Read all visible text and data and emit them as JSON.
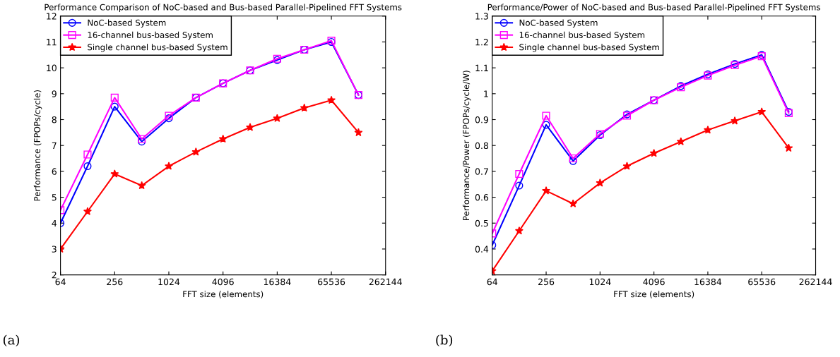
{
  "chart_data": [
    {
      "type": "line",
      "title": "Performance Comparison of NoC-based and Bus-based Parallel-Pipelined FFT Systems",
      "xlabel": "FFT size (elements)",
      "ylabel": "Performance (FPOPs/cycle)",
      "log": "x",
      "x": [
        64,
        128,
        256,
        512,
        1024,
        2048,
        4096,
        8192,
        16384,
        32768,
        65536,
        131072
      ],
      "xlim": [
        64,
        262144
      ],
      "xticks": [
        64,
        256,
        1024,
        4096,
        16384,
        65536,
        262144
      ],
      "ylim": [
        2,
        12
      ],
      "yticks": [
        2,
        3,
        4,
        5,
        6,
        7,
        8,
        9,
        10,
        11,
        12
      ],
      "grid": false,
      "legend": "top left",
      "annotations": [
        "(a)"
      ],
      "series": [
        {
          "name": "NoC-based System",
          "color": "#0000ff",
          "marker": "circle",
          "values": [
            4.0,
            6.2,
            8.5,
            7.15,
            8.05,
            8.85,
            9.4,
            9.9,
            10.3,
            10.7,
            11.0,
            8.95
          ]
        },
        {
          "name": "16-channel bus-based System",
          "color": "#ff00ff",
          "marker": "square",
          "values": [
            4.5,
            6.65,
            8.85,
            7.25,
            8.15,
            8.85,
            9.4,
            9.9,
            10.35,
            10.7,
            11.05,
            8.95
          ]
        },
        {
          "name": "Single channel bus-based System",
          "color": "#ff0000",
          "marker": "star",
          "values": [
            3.0,
            4.45,
            5.9,
            5.45,
            6.2,
            6.75,
            7.25,
            7.7,
            8.05,
            8.45,
            8.75,
            7.5
          ]
        }
      ]
    },
    {
      "type": "line",
      "title": "Performance/Power of NoC-based and Bus-based Parallel-Pipelined FFT Systems",
      "xlabel": "FFT size (elements)",
      "ylabel": "Performance/Power (FPOPs/cycle/W)",
      "log": "x",
      "x": [
        64,
        128,
        256,
        512,
        1024,
        2048,
        4096,
        8192,
        16384,
        32768,
        65536,
        131072
      ],
      "xlim": [
        64,
        262144
      ],
      "xticks": [
        64,
        256,
        1024,
        4096,
        16384,
        65536,
        262144
      ],
      "ylim": [
        0.3,
        1.3
      ],
      "yticks": [
        {
          "value": 0.3,
          "label": null
        },
        0.4,
        0.5,
        0.6,
        0.7,
        0.8,
        0.9,
        1,
        1.1,
        1.2,
        1.3
      ],
      "grid": false,
      "legend": "top left",
      "annotations": [
        "(b)"
      ],
      "series": [
        {
          "name": "NoC-based System",
          "color": "#0000ff",
          "marker": "circle",
          "values": [
            0.415,
            0.645,
            0.88,
            0.74,
            0.84,
            0.92,
            0.975,
            1.03,
            1.075,
            1.115,
            1.15,
            0.93
          ]
        },
        {
          "name": "16-channel bus-based System",
          "color": "#ff00ff",
          "marker": "square",
          "values": [
            0.46,
            0.69,
            0.915,
            0.75,
            0.845,
            0.915,
            0.975,
            1.025,
            1.07,
            1.11,
            1.145,
            0.925
          ]
        },
        {
          "name": "Single channel bus-based System",
          "color": "#ff0000",
          "marker": "star",
          "values": [
            0.315,
            0.47,
            0.625,
            0.575,
            0.655,
            0.72,
            0.77,
            0.815,
            0.86,
            0.895,
            0.93,
            0.79
          ]
        }
      ]
    }
  ]
}
